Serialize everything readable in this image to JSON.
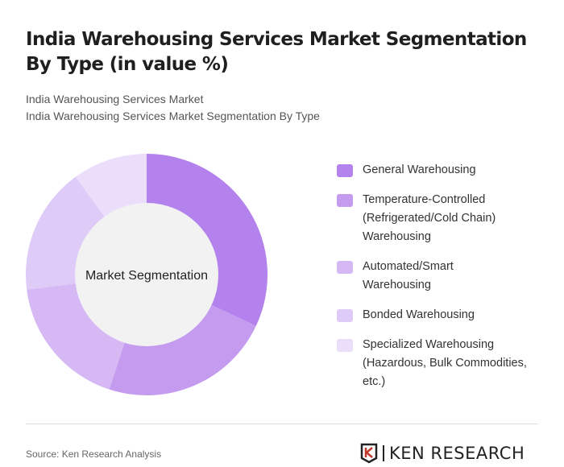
{
  "title": "India Warehousing Services Market Segmentation By Type (in value %)",
  "subtitle1": "India Warehousing Services Market",
  "subtitle2": "India Warehousing Services Market Segmentation By Type",
  "source": "Source: Ken Research Analysis",
  "logo": "KEN RESEARCH",
  "chart_data": {
    "type": "pie",
    "donut": true,
    "center_label": "Market Segmentation",
    "legend_position": "right",
    "categories": [
      "General Warehousing",
      "Temperature-Controlled (Refrigerated/Cold Chain) Warehousing",
      "Automated/Smart Warehousing",
      "Bonded Warehousing",
      "Specialized Warehousing (Hazardous, Bulk Commodities, etc.)"
    ],
    "values": [
      32,
      23,
      18,
      17,
      10
    ],
    "colors": [
      "#b482ec",
      "#c49bef",
      "#d5b8f4",
      "#dfcbf7",
      "#ebdefa"
    ]
  }
}
